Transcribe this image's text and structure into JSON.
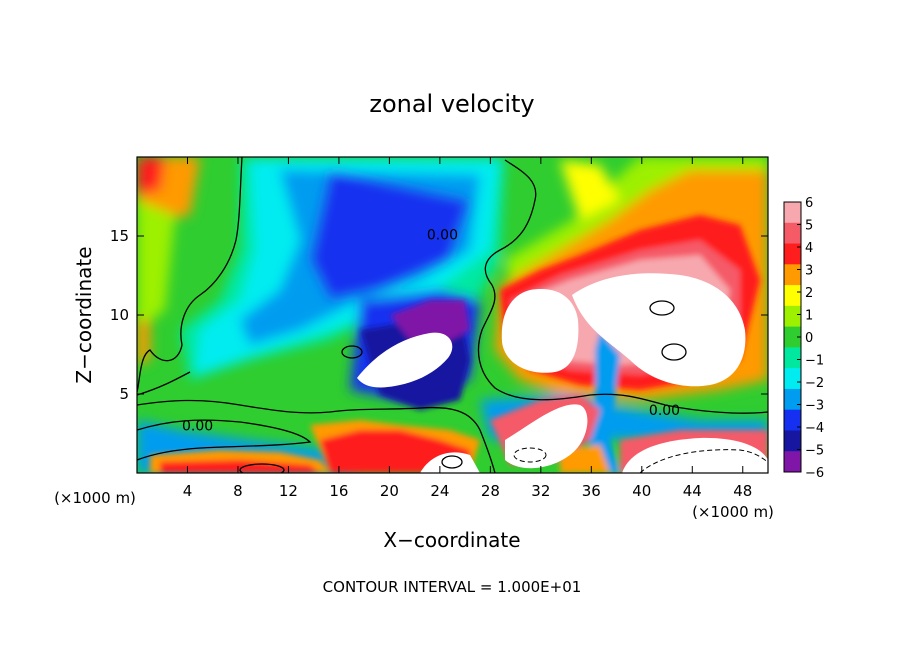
{
  "chart_data": {
    "type": "heatmap",
    "title": "zonal velocity",
    "xlabel": "X−coordinate",
    "ylabel": "Z−coordinate",
    "x_unit_left": "(×1000 m)",
    "x_unit_right": "(×1000 m)",
    "footer": "CONTOUR INTERVAL = 1.000E+01",
    "xlim": [
      0,
      50
    ],
    "ylim": [
      0,
      20
    ],
    "x_ticks": [
      4,
      8,
      12,
      16,
      20,
      24,
      28,
      32,
      36,
      40,
      44,
      48
    ],
    "x_tick_labels": [
      "4",
      "8",
      "12",
      "16",
      "20",
      "24",
      "28",
      "32",
      "36",
      "40",
      "44",
      "48"
    ],
    "y_ticks": [
      5,
      10,
      15
    ],
    "y_tick_labels": [
      "5",
      "10",
      "15"
    ],
    "colorbar": {
      "values": [
        6,
        5,
        4,
        3,
        2,
        1,
        0,
        -1,
        -2,
        -3,
        -4,
        -5,
        -6
      ],
      "labels": [
        "6",
        "5",
        "4",
        "3",
        "2",
        "1",
        "0",
        "−1",
        "−2",
        "−3",
        "−4",
        "−5",
        "−6"
      ],
      "colors": [
        "#f7a8ae",
        "#f55a67",
        "#ff1e1e",
        "#ff9a00",
        "#ffff00",
        "#9cf000",
        "#2fcd2f",
        "#00e8a0",
        "#00ecf0",
        "#009cf0",
        "#1530f0",
        "#1616a0",
        "#8016a8"
      ]
    },
    "contour_labels": [
      {
        "text": "0.00",
        "x": 4.8,
        "y": 3.0
      },
      {
        "text": "0.00",
        "x": 24.2,
        "y": 15.1
      },
      {
        "text": "0.00",
        "x": 41.8,
        "y": 4.0
      }
    ]
  }
}
